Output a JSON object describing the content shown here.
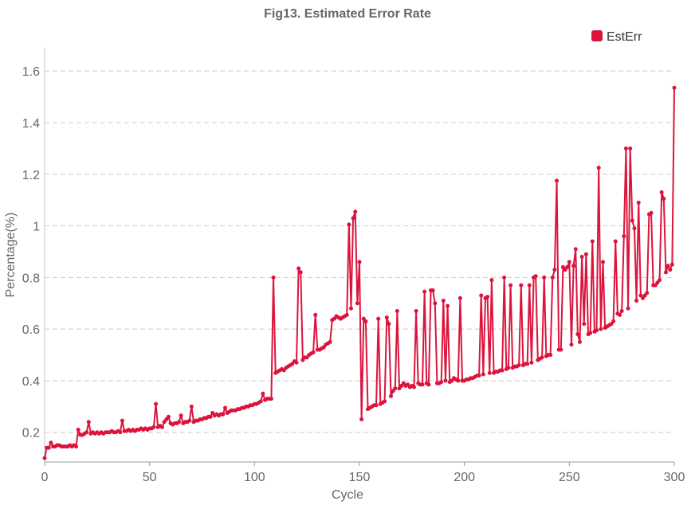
{
  "chart_data": {
    "type": "line",
    "title": "Fig13. Estimated Error Rate",
    "x_label": "Cycle",
    "y_label": "Percentage(%)",
    "xlim": [
      0,
      300
    ],
    "xticks": [
      0,
      50,
      100,
      150,
      200,
      250,
      300
    ],
    "ylim": [
      0.085,
      1.69
    ],
    "yticks": [
      0.2,
      0.4,
      0.6,
      0.8,
      1.0,
      1.2,
      1.4,
      1.6
    ],
    "grid": true,
    "legend": "top-right",
    "series": [
      {
        "name": "EstErr",
        "color": "#dc143c",
        "values": [
          0.1,
          0.14,
          0.14,
          0.16,
          0.145,
          0.145,
          0.15,
          0.15,
          0.145,
          0.145,
          0.145,
          0.145,
          0.15,
          0.145,
          0.15,
          0.145,
          0.21,
          0.19,
          0.19,
          0.195,
          0.2,
          0.24,
          0.195,
          0.2,
          0.195,
          0.2,
          0.195,
          0.2,
          0.195,
          0.2,
          0.2,
          0.2,
          0.205,
          0.2,
          0.2,
          0.205,
          0.2,
          0.245,
          0.205,
          0.205,
          0.21,
          0.205,
          0.21,
          0.205,
          0.21,
          0.21,
          0.215,
          0.21,
          0.215,
          0.21,
          0.215,
          0.215,
          0.22,
          0.31,
          0.22,
          0.225,
          0.22,
          0.24,
          0.25,
          0.26,
          0.235,
          0.23,
          0.235,
          0.235,
          0.24,
          0.265,
          0.235,
          0.24,
          0.24,
          0.245,
          0.3,
          0.24,
          0.245,
          0.245,
          0.25,
          0.25,
          0.255,
          0.255,
          0.26,
          0.26,
          0.275,
          0.265,
          0.27,
          0.265,
          0.27,
          0.27,
          0.295,
          0.275,
          0.28,
          0.285,
          0.285,
          0.285,
          0.29,
          0.29,
          0.295,
          0.295,
          0.3,
          0.3,
          0.305,
          0.305,
          0.31,
          0.31,
          0.315,
          0.32,
          0.35,
          0.325,
          0.33,
          0.33,
          0.33,
          0.8,
          0.43,
          0.435,
          0.44,
          0.445,
          0.44,
          0.45,
          0.455,
          0.46,
          0.465,
          0.475,
          0.47,
          0.835,
          0.82,
          0.48,
          0.49,
          0.49,
          0.5,
          0.505,
          0.51,
          0.655,
          0.52,
          0.52,
          0.525,
          0.53,
          0.54,
          0.545,
          0.55,
          0.635,
          0.64,
          0.65,
          0.645,
          0.64,
          0.645,
          0.65,
          0.655,
          1.005,
          0.68,
          1.03,
          1.055,
          0.7,
          0.86,
          0.25,
          0.64,
          0.63,
          0.29,
          0.295,
          0.3,
          0.305,
          0.305,
          0.64,
          0.31,
          0.315,
          0.32,
          0.645,
          0.62,
          0.34,
          0.36,
          0.37,
          0.67,
          0.37,
          0.38,
          0.39,
          0.38,
          0.385,
          0.375,
          0.38,
          0.375,
          0.67,
          0.39,
          0.385,
          0.385,
          0.745,
          0.39,
          0.385,
          0.75,
          0.75,
          0.7,
          0.39,
          0.39,
          0.395,
          0.71,
          0.4,
          0.69,
          0.395,
          0.4,
          0.41,
          0.405,
          0.4,
          0.72,
          0.4,
          0.4,
          0.405,
          0.405,
          0.41,
          0.41,
          0.415,
          0.42,
          0.42,
          0.73,
          0.425,
          0.72,
          0.725,
          0.43,
          0.79,
          0.43,
          0.435,
          0.435,
          0.44,
          0.44,
          0.8,
          0.445,
          0.45,
          0.77,
          0.45,
          0.455,
          0.455,
          0.46,
          0.77,
          0.46,
          0.465,
          0.465,
          0.77,
          0.47,
          0.8,
          0.805,
          0.48,
          0.485,
          0.49,
          0.8,
          0.495,
          0.5,
          0.5,
          0.8,
          0.83,
          1.175,
          0.52,
          0.52,
          0.84,
          0.83,
          0.84,
          0.86,
          0.54,
          0.845,
          0.91,
          0.58,
          0.55,
          0.88,
          0.62,
          0.89,
          0.58,
          0.585,
          0.94,
          0.59,
          0.595,
          1.225,
          0.6,
          0.86,
          0.605,
          0.61,
          0.615,
          0.62,
          0.63,
          0.94,
          0.66,
          0.655,
          0.67,
          0.96,
          1.3,
          0.68,
          1.3,
          1.02,
          0.99,
          0.71,
          1.09,
          0.73,
          0.72,
          0.73,
          0.74,
          1.045,
          1.05,
          0.77,
          0.77,
          0.78,
          0.79,
          1.13,
          1.105,
          0.82,
          0.845,
          0.83,
          0.85,
          1.535
        ]
      }
    ]
  }
}
